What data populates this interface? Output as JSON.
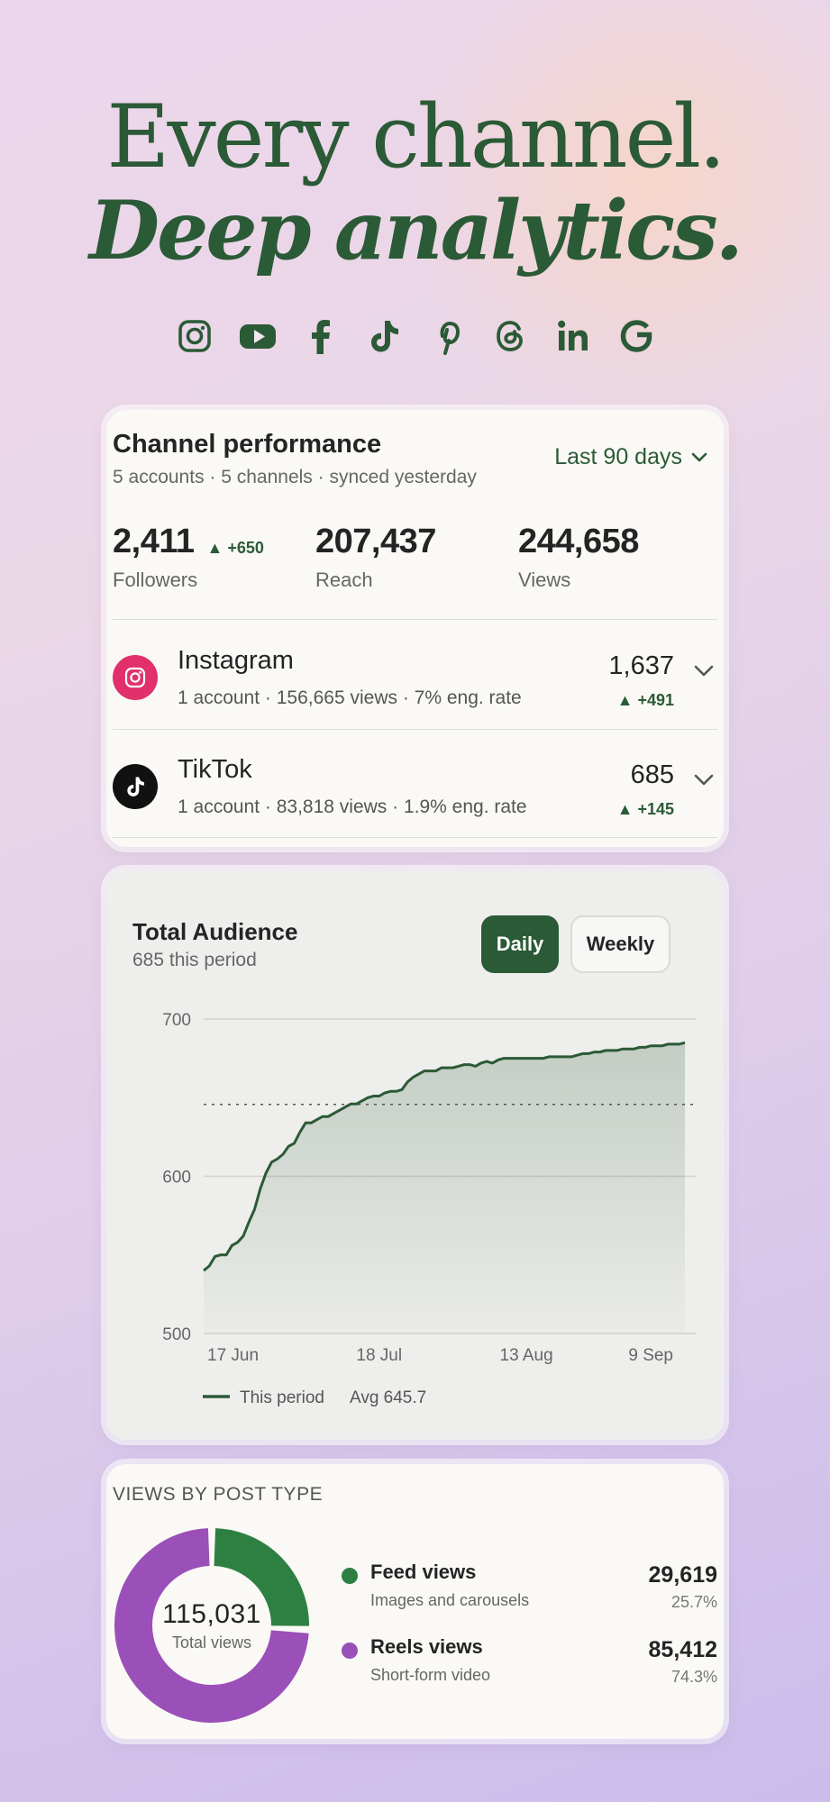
{
  "hero": {
    "line1": "Every channel.",
    "line2": "Deep analytics."
  },
  "socials": [
    "instagram-icon",
    "youtube-icon",
    "facebook-icon",
    "tiktok-icon",
    "pinterest-icon",
    "threads-icon",
    "linkedin-icon",
    "google-icon"
  ],
  "performance": {
    "title": "Channel performance",
    "subtitle": "5 accounts · 5 channels · synced yesterday",
    "period": "Last 90 days",
    "stats": [
      {
        "value": "2,411",
        "delta": "▲ +650",
        "label": "Followers"
      },
      {
        "value": "207,437",
        "label": "Reach"
      },
      {
        "value": "244,658",
        "label": "Views"
      }
    ],
    "channels": [
      {
        "name": "Instagram",
        "meta": "1 account · 156,665 views · 7% eng. rate",
        "value": "1,637",
        "delta": "▲ +491",
        "color": "#e1306c"
      },
      {
        "name": "TikTok",
        "meta": "1 account · 83,818 views · 1.9% eng. rate",
        "value": "685",
        "delta": "▲ +145",
        "color": "#111111"
      }
    ]
  },
  "audience": {
    "title": "Total Audience",
    "subtitle": "685 this period",
    "daily_label": "Daily",
    "weekly_label": "Weekly",
    "legend_series": "This period",
    "legend_avg": "Avg 645.7"
  },
  "chart_data": {
    "type": "area",
    "x_tick_labels": [
      "17 Jun",
      "18 Jul",
      "13 Aug",
      "9 Sep"
    ],
    "x_tick_positions": [
      0,
      31,
      57,
      84
    ],
    "ylim": [
      500,
      700
    ],
    "y_ticks": [
      500,
      600,
      700
    ],
    "avg": 645.7,
    "series": [
      {
        "name": "This period",
        "color": "#2b5a36",
        "values": [
          540,
          543,
          549,
          550,
          550,
          556,
          558,
          562,
          571,
          579,
          592,
          602,
          609,
          611,
          614,
          619,
          621,
          628,
          634,
          634,
          636,
          638,
          638,
          640,
          642,
          644,
          646,
          646,
          648,
          650,
          651,
          651,
          653,
          654,
          654,
          655,
          660,
          663,
          665,
          667,
          667,
          667,
          669,
          669,
          669,
          670,
          671,
          671,
          670,
          672,
          673,
          672,
          674,
          675,
          675,
          675,
          675,
          675,
          675,
          675,
          675,
          676,
          676,
          676,
          676,
          676,
          677,
          678,
          678,
          679,
          679,
          680,
          680,
          680,
          681,
          681,
          681,
          682,
          682,
          683,
          683,
          683,
          684,
          684,
          684,
          685
        ]
      }
    ]
  },
  "post_types": {
    "title": "VIEWS BY POST TYPE",
    "total": "115,031",
    "total_label": "Total views",
    "items": [
      {
        "name": "Feed views",
        "desc": "Images and carousels",
        "value": "29,619",
        "pct": "25.7%",
        "share": 0.257,
        "color": "#2e8042"
      },
      {
        "name": "Reels views",
        "desc": "Short-form video",
        "value": "85,412",
        "pct": "74.3%",
        "share": 0.743,
        "color": "#9b4fb8"
      }
    ]
  }
}
